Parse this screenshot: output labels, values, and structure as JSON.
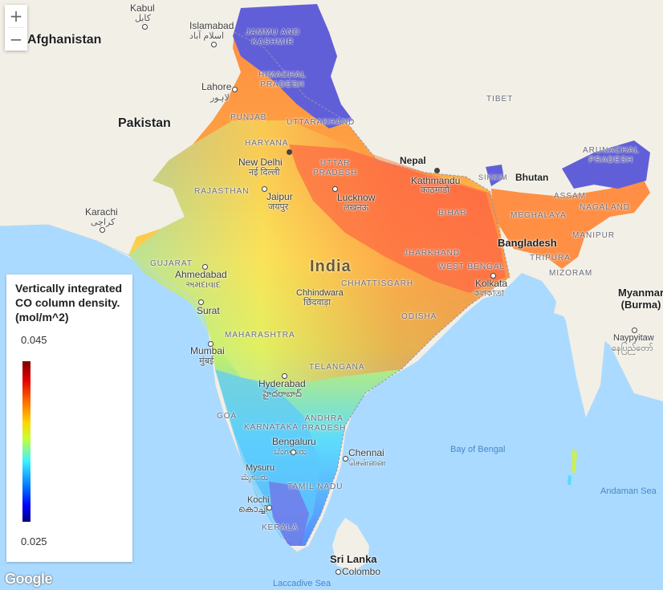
{
  "zoom": {
    "in_label": "+",
    "out_label": "−"
  },
  "legend": {
    "title": "Vertically integrated CO column density. (mol/m^2)",
    "max": "0.045",
    "min": "0.025"
  },
  "countries": {
    "afghanistan": "Afghanistan",
    "pakistan": "Pakistan",
    "india": "India",
    "bangladesh": "Bangladesh",
    "myanmar": "Myanmar\n(Burma)",
    "sri_lanka": "Sri Lanka",
    "nepal": "Nepal",
    "bhutan": "Bhutan",
    "tibet": "TIBET"
  },
  "regions": {
    "jammu": "JAMMU AND\nKASHMIR",
    "himachal": "HIMACHAL\nPRADESH",
    "punjab": "PUNJAB",
    "uttarakhand": "UTTARAKHAND",
    "haryana": "HARYANA",
    "uttar": "UTTAR\nPRADESH",
    "rajasthan": "RAJASTHAN",
    "bihar": "BIHAR",
    "sikkim": "SIKKIM",
    "arunachal": "ARUNACHAL\nPRADESH",
    "assam": "ASSAM",
    "nagaland": "NAGALAND",
    "meghalaya": "MEGHALAYA",
    "manipur": "MANIPUR",
    "tripura": "TRIPURA",
    "mizoram": "MIZORAM",
    "jharkhand": "JHARKHAND",
    "west_bengal": "WEST BENGAL",
    "gujarat": "GUJARAT",
    "chhattisgarh": "CHHATTISGARH",
    "odisha": "ODISHA",
    "maharashtra": "MAHARASHTRA",
    "telangana": "TELANGANA",
    "goa": "GOA",
    "karnataka": "KARNATAKA",
    "andhra": "ANDHRA\nPRADESH",
    "tamil_nadu": "TAMIL NADU",
    "kerala": "KERALA"
  },
  "cities": {
    "kabul": "Kabul",
    "kabul_native": "کابل",
    "islamabad": "Islamabad",
    "islamabad_native": "اسلام آباد",
    "lahore": "Lahore",
    "lahore_native": "لاہور",
    "new_delhi": "New Delhi",
    "new_delhi_native": "नई दिल्ली",
    "jaipur": "Jaipur",
    "jaipur_native": "जयपुर",
    "lucknow": "Lucknow",
    "lucknow_native": "लखनऊ",
    "kathmandu": "Kathmandu",
    "kathmandu_native": "काठमाडौं",
    "karachi": "Karachi",
    "karachi_native": "کراچی",
    "ahmedabad": "Ahmedabad",
    "ahmedabad_native": "અમદાવાદ",
    "chhindwara": "Chhindwara",
    "chhindwara_native": "छिंदवाड़ा",
    "kolkata": "Kolkata",
    "kolkata_native": "কলকাতা",
    "surat": "Surat",
    "mumbai": "Mumbai",
    "mumbai_native": "मुंबई",
    "hyderabad": "Hyderabad",
    "hyderabad_native": "హైదరాబాద్",
    "bengaluru": "Bengaluru",
    "bengaluru_native": "ಬೆಂಗಳೂರು",
    "chennai": "Chennai",
    "chennai_native": "சென்னை",
    "mysuru": "Mysuru",
    "mysuru_native": "ಮೈಸೂರು",
    "kochi": "Kochi",
    "kochi_native": "കൊച്ചി",
    "colombo": "Colombo",
    "naypyitaw": "Naypyitaw",
    "naypyitaw_native": "နေပြည်တော်"
  },
  "water": {
    "bay_of_bengal": "Bay of Bengal",
    "andaman_sea": "Andaman Sea",
    "laccadive_sea": "Laccadive Sea"
  },
  "attribution": "Google",
  "colors": {
    "water": "#aadaff",
    "land": "#f2efe6",
    "low": "#0000ff",
    "high": "#e60000"
  }
}
